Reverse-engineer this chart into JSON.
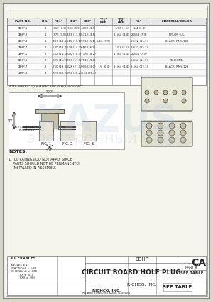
{
  "title": "CIRCUIT BOARD HOLE PLUG",
  "bg_color": "#f0f0e8",
  "border_color": "#888888",
  "page_bg": "#d8d8c8",
  "table_header": [
    "PART NO.",
    "FIG.",
    "\"D1\"",
    "\"D2\"",
    "\"D3\"",
    "\"T1\" REF.",
    "\"T2\" REF.",
    "\"A\"",
    "MATERIAL/COLOR"
  ],
  "table_rows": [
    [
      "CBHP-1",
      "1",
      ".312 (7.9)",
      ".390 (9.9)",
      ".468 (11.9)",
      "",
      "1/16 (1.6)",
      "1/4 (6.4)",
      ""
    ],
    [
      "CBHP-2",
      "1",
      ".375 (9.5)",
      ".453 (11.5)",
      ".531 (13.5)",
      "",
      "11/64 (4.4)",
      "20/64 (7.9)",
      "NYLON 6-6,"
    ],
    [
      "CBHP-3",
      "1",
      ".437 (11.1)",
      ".515 (13.1)",
      ".593 (15.1)",
      "5/16 (7.9)",
      "",
      "19/32 (15.1)",
      "BLACK, RMS-109"
    ],
    [
      "CBHP-4",
      "1",
      ".500 (12.7)",
      ".578 (14.7)",
      ".656 (16.7)",
      "",
      "7/32 (5.6)",
      "19/32 (15.1)",
      ""
    ],
    [
      "CBHP-5",
      "2",
      ".562 (14.3)",
      ".640 (16.3)",
      ".718 (18.2)",
      "",
      "11/64 (4.4)",
      "20/64 (7.9)",
      ""
    ],
    [
      "CBHP-6",
      "2",
      ".625 (15.9)",
      ".703 (17.9)",
      ".781 (19.8)",
      "",
      "",
      "30/64 (11.9)",
      "SILICONE,"
    ],
    [
      "CBHP-7",
      "2",
      ".750 (19.0)",
      ".828 (21.0)",
      ".906 (23.0)",
      "1/4 (6.4)",
      "11/64 (4.4)",
      "31/64 (12.3)",
      "BLACK, RMS-123"
    ],
    [
      "CBHP-8",
      "3",
      ".875 (22.2)",
      ".953 (24.2)",
      "1.031 (26.2)",
      "",
      "",
      "",
      ""
    ]
  ],
  "note_metric": "NOTE: METRIC EQUIVALENT FOR REFERENCE ONLY",
  "notes_title": "NOTES:",
  "notes": [
    "1.  UL RATINGS DO NOT APPLY SINCE\n    PARTS SHOULD NOT BE PERMANENTLY\n    INSTALLED IN ASSEMBLY."
  ],
  "title_block_title": "CIRCUIT BOARD HOLE PLUG",
  "part_number": "SEE TABLE",
  "drawing_number": "CBHP",
  "revision": "CA",
  "company": "RICHCO, INC.",
  "watermark_text": "KAZUS\nэлектронный  порт",
  "watermark_color": "#b0c8d8",
  "dim_color": "#333333",
  "line_color": "#444444",
  "text_color": "#222222"
}
